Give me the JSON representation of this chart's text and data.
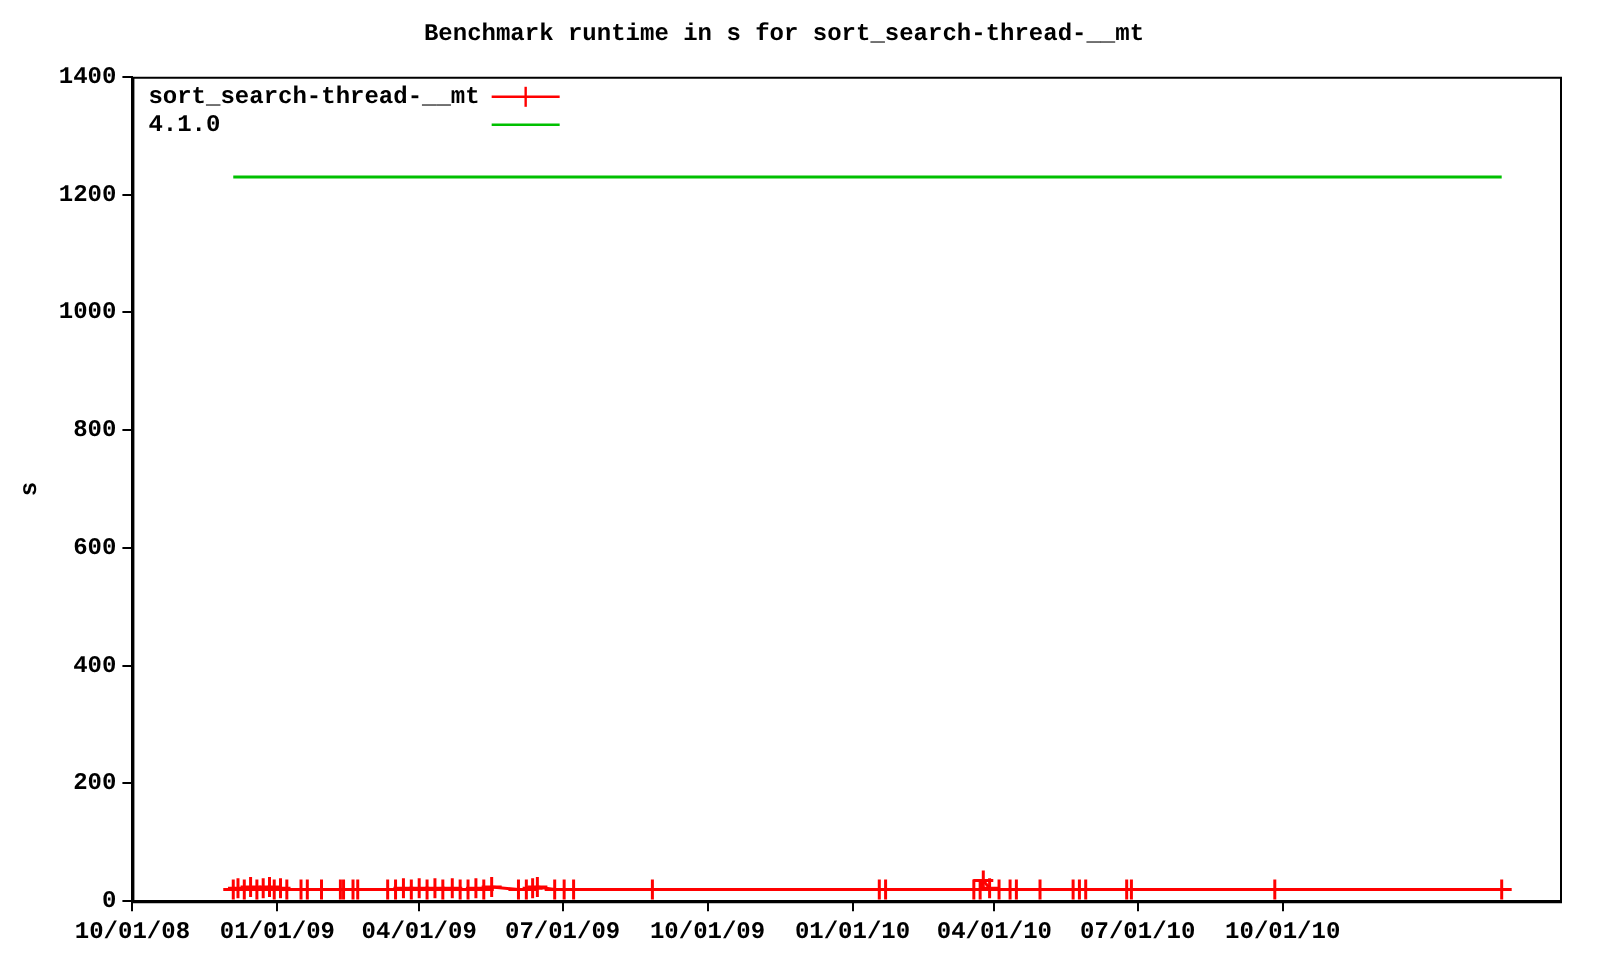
{
  "chart_data": {
    "type": "line",
    "title": "Benchmark runtime in s for sort_search-thread-__mt",
    "ylabel": "s",
    "xlim": [
      "2008-10-01",
      "2011-03-26"
    ],
    "xticks": [
      {
        "value": "2008-10-01",
        "label": "10/01/08"
      },
      {
        "value": "2009-01-01",
        "label": "01/01/09"
      },
      {
        "value": "2009-04-01",
        "label": "04/01/09"
      },
      {
        "value": "2009-07-01",
        "label": "07/01/09"
      },
      {
        "value": "2009-10-01",
        "label": "10/01/09"
      },
      {
        "value": "2010-01-01",
        "label": "01/01/10"
      },
      {
        "value": "2010-04-01",
        "label": "04/01/10"
      },
      {
        "value": "2010-07-01",
        "label": "07/01/10"
      },
      {
        "value": "2010-10-01",
        "label": "10/01/10"
      }
    ],
    "ylim": [
      0,
      1400
    ],
    "yticks": [
      0,
      200,
      400,
      600,
      800,
      1000,
      1200,
      1400
    ],
    "grid": false,
    "legend": "top left",
    "series": [
      {
        "name": "sort_search-thread-__mt",
        "color": "#ff0000",
        "marker": "cross",
        "x": [
          "2008-12-04",
          "2008-12-07",
          "2008-12-11",
          "2008-12-15",
          "2008-12-19",
          "2008-12-23",
          "2008-12-27",
          "2008-12-30",
          "2009-01-03",
          "2009-01-07",
          "2009-01-16",
          "2009-01-20",
          "2009-01-29",
          "2009-02-10",
          "2009-02-12",
          "2009-02-18",
          "2009-02-21",
          "2009-03-12",
          "2009-03-17",
          "2009-03-22",
          "2009-03-27",
          "2009-04-01",
          "2009-04-06",
          "2009-04-11",
          "2009-04-16",
          "2009-04-22",
          "2009-04-27",
          "2009-05-02",
          "2009-05-07",
          "2009-05-12",
          "2009-05-17",
          "2009-06-03",
          "2009-06-08",
          "2009-06-12",
          "2009-06-15",
          "2009-06-26",
          "2009-07-02",
          "2009-07-08",
          "2009-08-27",
          "2010-01-18",
          "2010-01-22",
          "2010-03-19",
          "2010-03-23",
          "2010-03-25",
          "2010-03-29",
          "2010-04-04",
          "2010-04-11",
          "2010-04-15",
          "2010-04-30",
          "2010-05-21",
          "2010-05-25",
          "2010-05-29",
          "2010-06-24",
          "2010-06-27",
          "2010-09-26",
          "2011-02-17"
        ],
        "values": [
          20,
          22,
          20,
          24,
          20,
          22,
          24,
          20,
          22,
          20,
          20,
          20,
          20,
          20,
          20,
          20,
          20,
          20,
          20,
          22,
          20,
          22,
          20,
          22,
          20,
          22,
          20,
          20,
          22,
          20,
          24,
          20,
          20,
          22,
          24,
          20,
          20,
          20,
          20,
          20,
          20,
          20,
          20,
          35,
          22,
          20,
          20,
          20,
          20,
          20,
          20,
          20,
          20,
          20,
          20,
          20
        ]
      },
      {
        "name": "4.1.0",
        "color": "#00c000",
        "marker": "none",
        "x": [
          "2008-12-04",
          "2011-02-17"
        ],
        "values": [
          1230,
          1230
        ]
      }
    ]
  }
}
